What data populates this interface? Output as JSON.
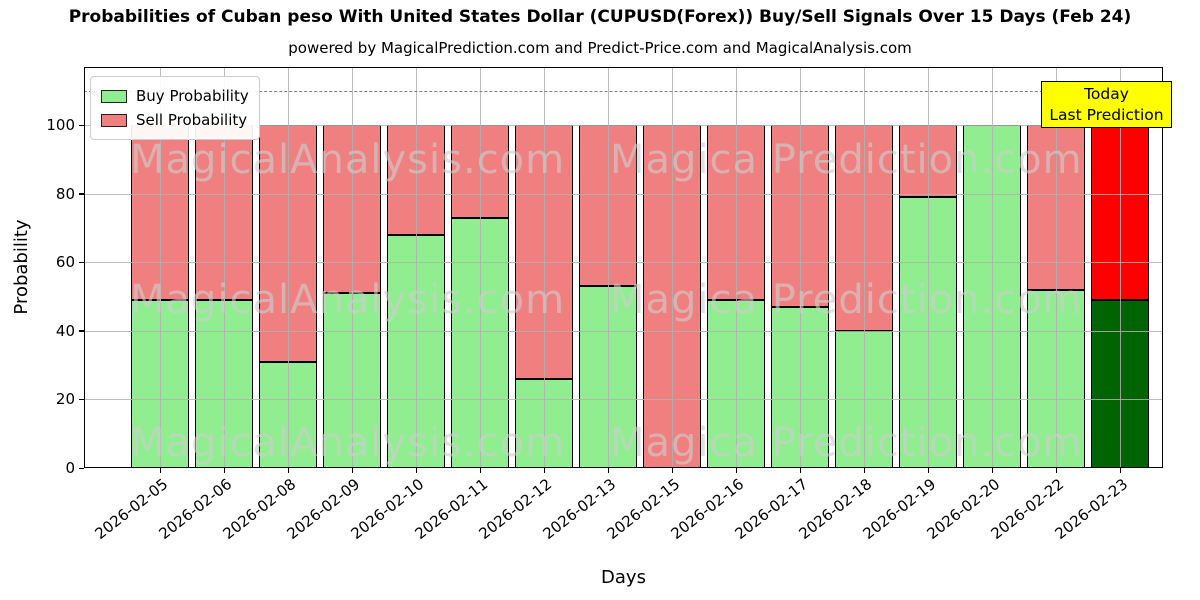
{
  "chart": {
    "title": "Probabilities of Cuban peso With United States Dollar (CUPUSD(Forex)) Buy/Sell Signals Over 15 Days (Feb 24)",
    "subtitle": "powered by MagicalPrediction.com and Predict-Price.com and MagicalAnalysis.com",
    "xlabel": "Days",
    "ylabel": "Probability",
    "annotation": {
      "line1": "Today",
      "line2": "Last Prediction",
      "bg_color": "#ffff00"
    },
    "watermark_left": "MagicalAnalysis.com",
    "watermark_right": "Magica Prediction.com"
  },
  "chart_data": {
    "type": "bar",
    "stacked": true,
    "title": "Probabilities of Cuban peso With United States Dollar (CUPUSD(Forex)) Buy/Sell Signals Over 15 Days (Feb 24)",
    "xlabel": "Days",
    "ylabel": "Probability",
    "categories": [
      "2026-02-05",
      "2026-02-06",
      "2026-02-08",
      "2026-02-09",
      "2026-02-10",
      "2026-02-11",
      "2026-02-12",
      "2026-02-13",
      "2026-02-15",
      "2026-02-16",
      "2026-02-17",
      "2026-02-18",
      "2026-02-19",
      "2026-02-20",
      "2026-02-22",
      "2026-02-23"
    ],
    "series": [
      {
        "name": "Buy Probability",
        "color": "#90ee90",
        "values": [
          49,
          49,
          31,
          51,
          68,
          73,
          26,
          53,
          0,
          49,
          47,
          40,
          79,
          100,
          52,
          49
        ]
      },
      {
        "name": "Sell Probability",
        "color": "#f08080",
        "values": [
          51,
          51,
          69,
          49,
          32,
          27,
          74,
          47,
          100,
          51,
          53,
          60,
          21,
          0,
          48,
          51
        ]
      }
    ],
    "today_bar": {
      "category": "2026-02-23",
      "buy_color": "#006400",
      "sell_color": "#ff0000"
    },
    "ylim": [
      0,
      117
    ],
    "yticks": [
      0,
      20,
      40,
      60,
      80,
      100
    ],
    "dashed_line_y": 110,
    "grid": true,
    "legend_position": "upper-left"
  }
}
